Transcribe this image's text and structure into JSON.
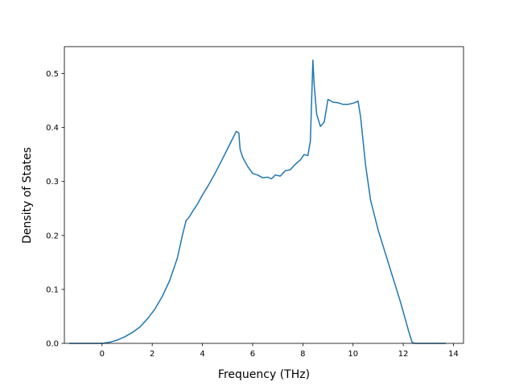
{
  "chart_data": {
    "type": "line",
    "title": "",
    "xlabel": "Frequency (THz)",
    "ylabel": "Density of States",
    "xlim": [
      -1.5,
      14.4
    ],
    "ylim": [
      0.0,
      0.55
    ],
    "xticks": [
      0,
      2,
      4,
      6,
      8,
      10,
      12,
      14
    ],
    "yticks": [
      0.0,
      0.1,
      0.2,
      0.3,
      0.4,
      0.5
    ],
    "xtick_labels": [
      "0",
      "2",
      "4",
      "6",
      "8",
      "10",
      "12",
      "14"
    ],
    "ytick_labels": [
      "0.0",
      "0.1",
      "0.2",
      "0.3",
      "0.4",
      "0.5"
    ],
    "grid": false,
    "legend": "none",
    "line_color": "#1f77b4",
    "series": [
      {
        "x": [
          -1.3,
          -0.5,
          0.0,
          0.3,
          0.6,
          0.9,
          1.2,
          1.5,
          1.8,
          2.1,
          2.4,
          2.7,
          3.0,
          3.2,
          3.35,
          3.4,
          3.5,
          3.6,
          3.8,
          4.0,
          4.2,
          4.5,
          4.8,
          5.1,
          5.35,
          5.45,
          5.5,
          5.6,
          5.8,
          6.0,
          6.2,
          6.4,
          6.6,
          6.75,
          6.9,
          7.1,
          7.3,
          7.5,
          7.7,
          7.9,
          8.05,
          8.2,
          8.3,
          8.4,
          8.45,
          8.55,
          8.7,
          8.85,
          9.0,
          9.1,
          9.2,
          9.4,
          9.6,
          9.8,
          10.0,
          10.2,
          10.3,
          10.5,
          10.7,
          11.0,
          11.3,
          11.6,
          11.9,
          12.2,
          12.35,
          12.45,
          12.6,
          13.7
        ],
        "y": [
          0.0,
          0.0,
          0.0,
          0.002,
          0.006,
          0.012,
          0.02,
          0.03,
          0.045,
          0.063,
          0.087,
          0.117,
          0.158,
          0.2,
          0.228,
          0.23,
          0.236,
          0.244,
          0.258,
          0.275,
          0.29,
          0.315,
          0.342,
          0.37,
          0.393,
          0.39,
          0.36,
          0.345,
          0.328,
          0.315,
          0.312,
          0.307,
          0.308,
          0.305,
          0.312,
          0.31,
          0.32,
          0.322,
          0.332,
          0.34,
          0.35,
          0.348,
          0.375,
          0.525,
          0.48,
          0.425,
          0.402,
          0.41,
          0.452,
          0.45,
          0.447,
          0.446,
          0.443,
          0.443,
          0.445,
          0.449,
          0.42,
          0.33,
          0.265,
          0.21,
          0.165,
          0.12,
          0.075,
          0.025,
          0.002,
          0.0,
          0.0,
          0.0
        ]
      }
    ]
  }
}
